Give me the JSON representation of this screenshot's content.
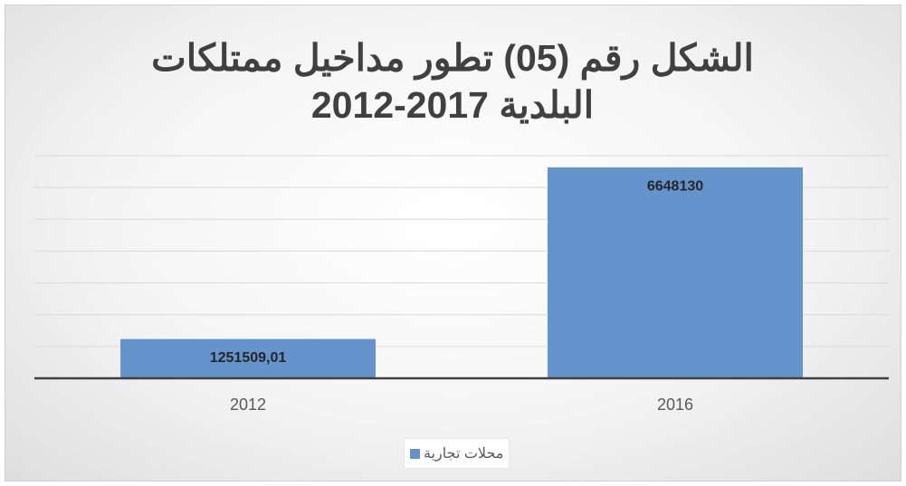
{
  "chart_data": {
    "type": "bar",
    "title": "الشكل رقم (05) تطور مداخيل ممتلكات البلدية 2017-2012",
    "categories": [
      "2012",
      "2016"
    ],
    "series": [
      {
        "name": "محلات تجارية",
        "color": "#6594cc",
        "values": [
          1251509.01,
          6648130
        ],
        "value_labels": [
          "1251509,01",
          "6648130"
        ]
      }
    ],
    "ylim": [
      0,
      7000000
    ],
    "yticks": [
      0,
      1000000,
      2000000,
      3000000,
      4000000,
      5000000,
      6000000,
      7000000
    ],
    "grid": true,
    "legend": "bottom"
  }
}
